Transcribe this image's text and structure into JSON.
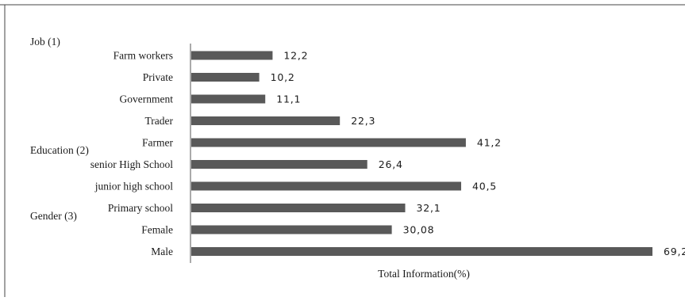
{
  "chart_data": {
    "type": "bar",
    "orientation": "horizontal",
    "xlabel": "Total Information(%)",
    "group_labels": [
      "Job (1)",
      "Education (2)",
      "Gender (3)"
    ],
    "categories": [
      "Farm workers",
      "Private",
      "Government",
      "Trader",
      "Farmer",
      "senior High School",
      "junior high school",
      "Primary school",
      "Female",
      "Male"
    ],
    "value_labels": [
      "12,2",
      "10,2",
      "11,1",
      "22,3",
      "41,2",
      "26,4",
      "40,5",
      "32,1",
      "30,08",
      "69,2"
    ],
    "values": [
      12.2,
      10.2,
      11.1,
      22.3,
      41.2,
      26.4,
      40.5,
      32.1,
      30.08,
      69.2
    ],
    "xlim": [
      0,
      69.2
    ],
    "grid": false,
    "bar_color": "#595959"
  }
}
